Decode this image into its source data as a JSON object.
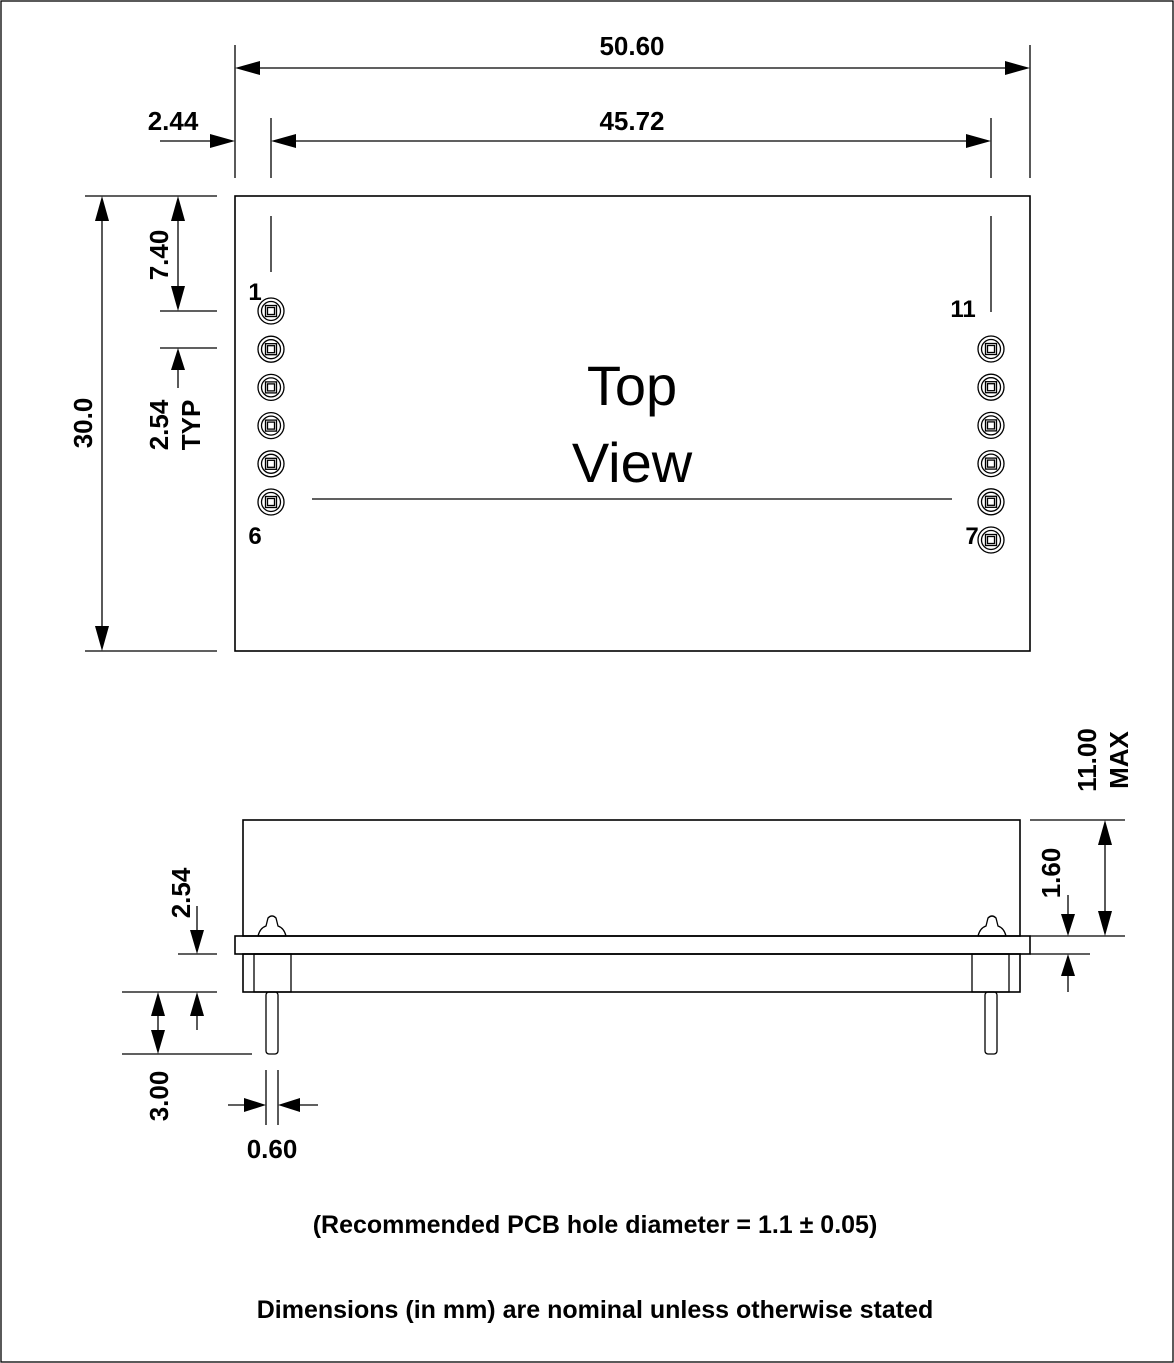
{
  "top_view": {
    "label_line1": "Top",
    "label_line2": "View",
    "dim_overall_width": "50.60",
    "dim_pin_span": "45.72",
    "dim_edge_offset": "2.44",
    "dim_height": "30.0",
    "dim_top_offset": "7.40",
    "dim_pitch": "2.54",
    "dim_pitch_note": "TYP",
    "pin_labels": {
      "p1": "1",
      "p6": "6",
      "p7": "7",
      "p11": "11"
    }
  },
  "side_view": {
    "dim_max_height": "11.00",
    "dim_max_note": "MAX",
    "dim_board_thickness": "1.60",
    "dim_standoff": "2.54",
    "dim_pin_length": "3.00",
    "dim_pin_diameter": "0.60",
    "body_color": "#cccccc"
  },
  "notes": {
    "pcb_hole": "(Recommended PCB hole diameter = 1.1 ± 0.05)",
    "dimensions": "Dimensions (in mm) are nominal unless otherwise stated"
  }
}
